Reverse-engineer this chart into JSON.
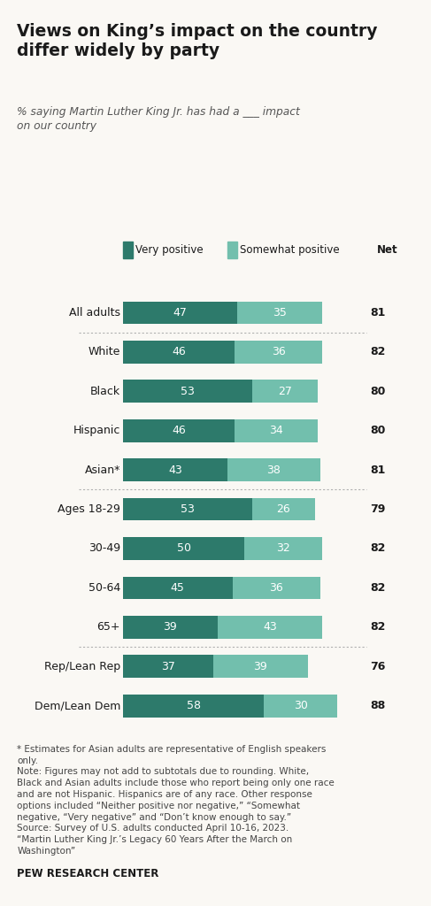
{
  "title": "Views on King’s impact on the country\ndiffer widely by party",
  "subtitle": "% saying Martin Luther King Jr. has had a ___ impact\non our country",
  "categories": [
    "All adults",
    "White",
    "Black",
    "Hispanic",
    "Asian*",
    "Ages 18-29",
    "30-49",
    "50-64",
    "65+",
    "Rep/Lean Rep",
    "Dem/Lean Dem"
  ],
  "very_positive": [
    47,
    46,
    53,
    46,
    43,
    53,
    50,
    45,
    39,
    37,
    58
  ],
  "somewhat_positive": [
    35,
    36,
    27,
    34,
    38,
    26,
    32,
    36,
    43,
    39,
    30
  ],
  "net": [
    81,
    82,
    80,
    80,
    81,
    79,
    82,
    82,
    82,
    76,
    88
  ],
  "color_very": "#2d7a6b",
  "color_somewhat": "#72bfad",
  "background_color": "#faf8f4",
  "bar_text_color": "#ffffff",
  "footnote_line1": "* Estimates for Asian adults are representative of English speakers",
  "footnote_line2": "only.",
  "footnote_note": "Note: Figures may not add to subtotals due to rounding. White,\nBlack and Asian adults include those who report being only one race\nand are not Hispanic. Hispanics are of any race. Other response\noptions included “Neither positive nor negative,” “Somewhat\nnegative, “Very negative” and “Don’t know enough to say.”",
  "footnote_source": "Source: Survey of U.S. adults conducted April 10-16, 2023.\n“Martin Luther King Jr.’s Legacy 60 Years After the March on\nWashington”",
  "source_label": "PEW RESEARCH CENTER",
  "legend_very": "Very positive",
  "legend_somewhat": "Somewhat positive",
  "legend_net": "Net",
  "divider_after_indices": [
    0,
    4,
    8
  ]
}
